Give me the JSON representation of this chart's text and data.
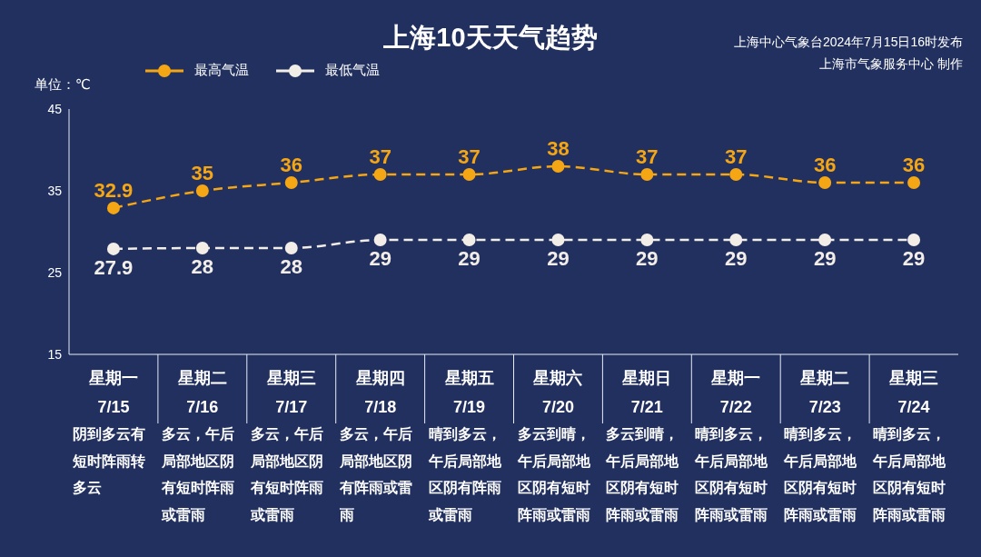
{
  "chart_data": {
    "type": "line",
    "title": "上海10天天气趋势",
    "ylabel": "单位：℃",
    "categories": [
      "星期一 7/15",
      "星期二 7/16",
      "星期三 7/17",
      "星期四 7/18",
      "星期五 7/19",
      "星期六 7/20",
      "星期日 7/21",
      "星期一 7/22",
      "星期二 7/23",
      "星期三 7/24"
    ],
    "series": [
      {
        "name": "最高气温",
        "color": "#f5a614",
        "values": [
          32.9,
          35,
          36,
          37,
          37,
          38,
          37,
          37,
          36,
          36
        ]
      },
      {
        "name": "最低气温",
        "color": "#f3ede8",
        "values": [
          27.9,
          28,
          28,
          29,
          29,
          29,
          29,
          29,
          29,
          29
        ]
      }
    ],
    "ylim": [
      15,
      45
    ],
    "yticks": [
      15,
      25,
      35,
      45
    ],
    "grid": false,
    "legend": "top left",
    "marker": "circle",
    "line_style": "dashed",
    "data_labels": true,
    "annotations": [
      "上海中心气象台2024年7月15日16时发布",
      "上海市气象服务中心 制作",
      "阴到多云有短时阵雨转多云",
      "多云，午后局部地区阴有短时阵雨或雷雨",
      "多云，午后局部地区阴有短时阵雨或雷雨",
      "多云，午后局部地区阴有阵雨或雷雨",
      "晴到多云，午后局部地区阴有阵雨或雷雨",
      "多云到晴，午后局部地区阴有短时阵雨或雷雨",
      "多云到晴，午后局部地区阴有短时阵雨或雷雨",
      "晴到多云，午后局部地区阴有短时阵雨或雷雨",
      "晴到多云，午后局部地区阴有短时阵雨或雷雨",
      "晴到多云，午后局部地区阴有短时阵雨或雷雨"
    ]
  }
}
